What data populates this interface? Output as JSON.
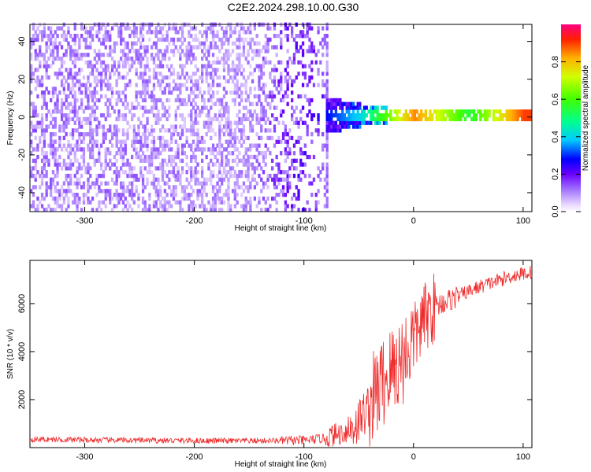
{
  "title": "C2E2.2024.298.10.00.G30",
  "colors": {
    "snr_line": "#ee2a2a",
    "frame": "#000000",
    "background": "#ffffff"
  },
  "chart_data": [
    {
      "type": "heatmap",
      "title": "C2E2.2024.298.10.00.G30",
      "xlabel": "Height of straight line (km)",
      "ylabel": "Frequency (Hz)",
      "xlim": [
        -350,
        108
      ],
      "ylim": [
        -50,
        49
      ],
      "x_ticks": [
        -300,
        -200,
        -100,
        0,
        100
      ],
      "x_tick_labels": [
        "-300",
        "-200",
        "-100",
        "0",
        "100"
      ],
      "y_ticks": [
        -40,
        -20,
        0,
        20,
        40
      ],
      "y_tick_labels": [
        "-40",
        "-20",
        "0",
        "20",
        "40"
      ],
      "colorbar": {
        "label": "Normalized spectral amplitude",
        "range": [
          0,
          1
        ],
        "ticks": [
          0.0,
          0.2,
          0.4,
          0.6,
          0.8
        ],
        "tick_labels": [
          "0.0",
          "0.2",
          "0.4",
          "0.6",
          "0.8"
        ],
        "colormap": "rainbow"
      },
      "description_points": [
        {
          "height_km": -350,
          "freq_spread_hz": 49,
          "amplitude": 0.12
        },
        {
          "height_km": -150,
          "freq_spread_hz": 49,
          "amplitude": 0.1
        },
        {
          "height_km": -100,
          "freq_spread_hz": 12,
          "amplitude": 0.2
        },
        {
          "height_km": -50,
          "freq_spread_hz": 6,
          "amplitude": 0.4
        },
        {
          "height_km": 0,
          "freq_spread_hz": 2,
          "amplitude": 0.85
        },
        {
          "height_km": 50,
          "freq_spread_hz": 2,
          "amplitude": 0.55
        },
        {
          "height_km": 100,
          "freq_spread_hz": 2,
          "amplitude": 0.9
        }
      ]
    },
    {
      "type": "line",
      "xlabel": "Height of straight line (km)",
      "ylabel": "SNR (10 * v/v)",
      "xlim": [
        -350,
        108
      ],
      "ylim": [
        0,
        7800
      ],
      "x_ticks": [
        -300,
        -200,
        -100,
        0,
        100
      ],
      "x_tick_labels": [
        "-300",
        "-200",
        "-100",
        "0",
        "100"
      ],
      "y_ticks": [
        2000,
        4000,
        6000
      ],
      "y_tick_labels": [
        "2000",
        "4000",
        "6000"
      ],
      "series": [
        {
          "name": "SNR",
          "x": [
            -350,
            -300,
            -250,
            -200,
            -150,
            -100,
            -80,
            -60,
            -50,
            -40,
            -30,
            -20,
            -10,
            0,
            10,
            20,
            30,
            40,
            50,
            60,
            70,
            80,
            90,
            100,
            108
          ],
          "y": [
            350,
            320,
            300,
            290,
            280,
            300,
            400,
            700,
            1100,
            1800,
            2600,
            3200,
            3700,
            4500,
            5400,
            5900,
            6100,
            6300,
            6500,
            6700,
            6850,
            7000,
            7150,
            7250,
            7300
          ]
        }
      ]
    }
  ]
}
